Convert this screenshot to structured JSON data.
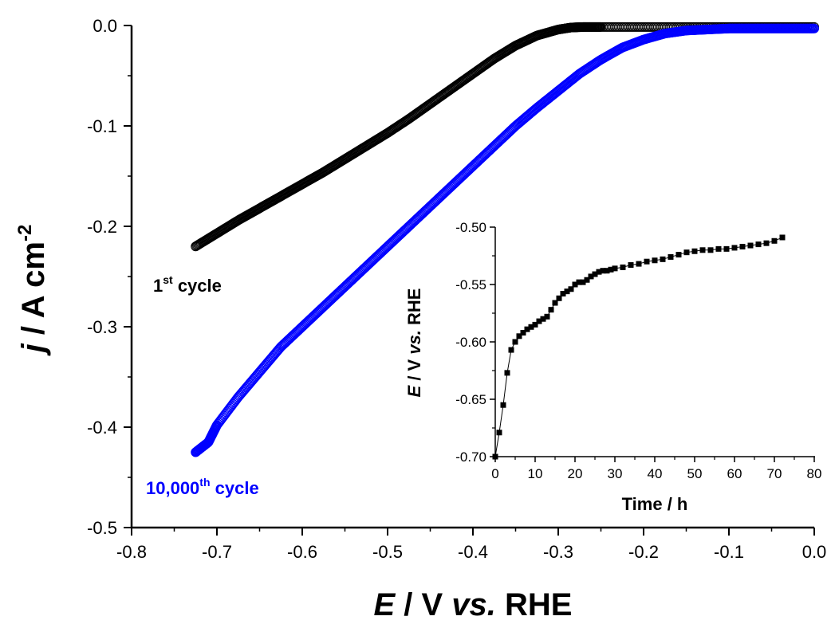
{
  "chart_data": [
    {
      "type": "scatter",
      "title": "",
      "xlabel": {
        "italic": "E",
        "mid": " / V ",
        "italic2": "vs.",
        "rest": " RHE"
      },
      "ylabel": {
        "italic": "j",
        "mid": " / A cm",
        "sup": "-2"
      },
      "xlim": [
        -0.8,
        0.0
      ],
      "ylim": [
        -0.5,
        0.0
      ],
      "xticks": [
        "-0.8",
        "-0.7",
        "-0.6",
        "-0.5",
        "-0.4",
        "-0.3",
        "-0.2",
        "-0.1",
        "0.0"
      ],
      "yticks": [
        "0.0",
        "-0.1",
        "-0.2",
        "-0.3",
        "-0.4",
        "-0.5"
      ],
      "marker": "open-circle",
      "series": [
        {
          "label": {
            "main": "1",
            "sup": "st",
            "rest": " cycle"
          },
          "color": "#000000",
          "x": [
            -0.725,
            -0.7,
            -0.675,
            -0.65,
            -0.625,
            -0.6,
            -0.575,
            -0.55,
            -0.525,
            -0.5,
            -0.475,
            -0.45,
            -0.425,
            -0.4,
            -0.375,
            -0.35,
            -0.325,
            -0.3,
            -0.285,
            -0.27,
            -0.25,
            -0.2,
            -0.15,
            -0.1,
            -0.05,
            0.0
          ],
          "y": [
            -0.22,
            -0.207,
            -0.194,
            -0.182,
            -0.17,
            -0.158,
            -0.146,
            -0.133,
            -0.12,
            -0.107,
            -0.093,
            -0.078,
            -0.063,
            -0.048,
            -0.033,
            -0.02,
            -0.01,
            -0.004,
            -0.002,
            -0.0015,
            -0.0015,
            -0.0015,
            -0.0015,
            -0.0015,
            -0.0015,
            -0.0015
          ]
        },
        {
          "label": {
            "main": "10,000",
            "sup": "th",
            "rest": " cycle"
          },
          "color": "#0000ff",
          "x": [
            -0.725,
            -0.71,
            -0.7,
            -0.675,
            -0.65,
            -0.625,
            -0.6,
            -0.575,
            -0.55,
            -0.525,
            -0.5,
            -0.475,
            -0.45,
            -0.425,
            -0.4,
            -0.375,
            -0.35,
            -0.325,
            -0.3,
            -0.275,
            -0.25,
            -0.225,
            -0.2,
            -0.175,
            -0.15,
            -0.125,
            -0.1,
            -0.075,
            -0.05,
            -0.025,
            0.0
          ],
          "y": [
            -0.425,
            -0.415,
            -0.398,
            -0.37,
            -0.345,
            -0.32,
            -0.3,
            -0.28,
            -0.26,
            -0.24,
            -0.22,
            -0.2,
            -0.18,
            -0.16,
            -0.14,
            -0.12,
            -0.1,
            -0.082,
            -0.065,
            -0.048,
            -0.034,
            -0.022,
            -0.014,
            -0.008,
            -0.005,
            -0.004,
            -0.003,
            -0.003,
            -0.003,
            -0.003,
            -0.003
          ]
        }
      ]
    },
    {
      "type": "line",
      "title": "",
      "xlabel": "Time / h",
      "ylabel": {
        "italic": "E",
        "mid": " / V ",
        "italic2": "vs.",
        "rest": " RHE"
      },
      "xlim": [
        0,
        80
      ],
      "ylim": [
        -0.7,
        -0.5
      ],
      "xticks": [
        "0",
        "10",
        "20",
        "30",
        "40",
        "50",
        "60",
        "70",
        "80"
      ],
      "yticks": [
        "-0.50",
        "-0.55",
        "-0.60",
        "-0.65",
        "-0.70"
      ],
      "marker": "filled-square",
      "series": [
        {
          "color": "#000000",
          "x": [
            0,
            1,
            2,
            3,
            4,
            5,
            6,
            7,
            8,
            9,
            10,
            11,
            12,
            13,
            14,
            15,
            16,
            17,
            18,
            19,
            20,
            21,
            22,
            23,
            24,
            25,
            26,
            27,
            28,
            29,
            30,
            32,
            34,
            36,
            38,
            40,
            42,
            44,
            46,
            48,
            50,
            52,
            54,
            56,
            58,
            60,
            62,
            64,
            66,
            68,
            70,
            72
          ],
          "y": [
            -0.7,
            -0.679,
            -0.655,
            -0.627,
            -0.607,
            -0.6,
            -0.595,
            -0.592,
            -0.589,
            -0.587,
            -0.585,
            -0.582,
            -0.58,
            -0.578,
            -0.572,
            -0.566,
            -0.562,
            -0.558,
            -0.556,
            -0.554,
            -0.55,
            -0.548,
            -0.548,
            -0.546,
            -0.543,
            -0.541,
            -0.539,
            -0.538,
            -0.538,
            -0.537,
            -0.536,
            -0.535,
            -0.533,
            -0.532,
            -0.53,
            -0.529,
            -0.528,
            -0.526,
            -0.524,
            -0.522,
            -0.521,
            -0.52,
            -0.52,
            -0.519,
            -0.519,
            -0.518,
            -0.517,
            -0.516,
            -0.515,
            -0.514,
            -0.512,
            -0.509
          ]
        }
      ]
    }
  ]
}
